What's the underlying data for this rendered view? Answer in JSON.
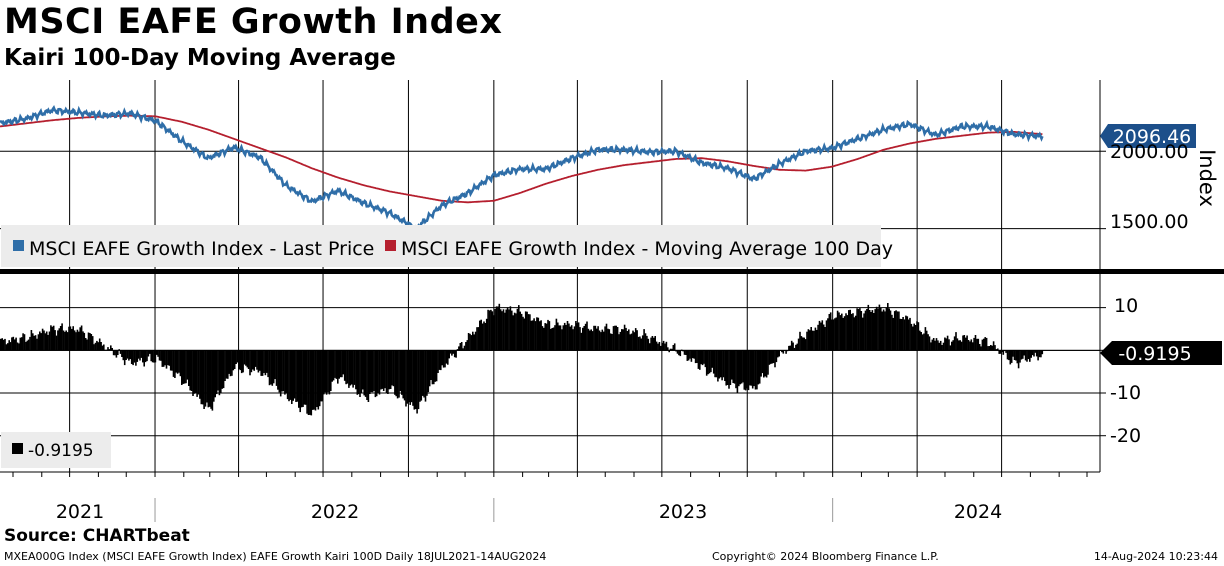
{
  "header": {
    "title": "MSCI EAFE Growth Index",
    "subtitle": "Kairi 100-Day Moving Average"
  },
  "footer": {
    "source": "Source: CHARTbeat",
    "ticker_info": "MXEA000G Index (MSCI EAFE Growth Index) EAFE Growth Kairi 100D  Daily 18JUL2021-14AUG2024",
    "copyright": "Copyright© 2024 Bloomberg Finance L.P.",
    "timestamp": "14-Aug-2024 10:23:44"
  },
  "colors": {
    "price": "#2f6ea8",
    "ma": "#b51f2e",
    "kairi": "#000000",
    "price_tag": "#1c4f8a"
  },
  "chart_data": [
    {
      "type": "line",
      "name": "price-panel",
      "ylabel": "Index",
      "ylim": [
        1220,
        2460
      ],
      "yticks": [
        1500,
        2000
      ],
      "ytick_labels": [
        "1500.00",
        "2000.00"
      ],
      "x": [
        "2021-07-18",
        "2021-08-15",
        "2021-09-12",
        "2021-10-10",
        "2021-11-07",
        "2021-12-05",
        "2022-01-02",
        "2022-01-30",
        "2022-02-27",
        "2022-03-27",
        "2022-04-24",
        "2022-05-22",
        "2022-06-19",
        "2022-07-17",
        "2022-08-14",
        "2022-09-11",
        "2022-10-09",
        "2022-11-06",
        "2022-12-04",
        "2023-01-01",
        "2023-01-29",
        "2023-02-26",
        "2023-03-26",
        "2023-04-23",
        "2023-05-21",
        "2023-06-18",
        "2023-07-16",
        "2023-08-13",
        "2023-09-10",
        "2023-10-08",
        "2023-11-05",
        "2023-12-03",
        "2023-12-31",
        "2024-01-28",
        "2024-02-25",
        "2024-03-24",
        "2024-04-21",
        "2024-05-19",
        "2024-06-16",
        "2024-07-14",
        "2024-08-14"
      ],
      "series": [
        {
          "name": "MSCI EAFE Growth Index - Last Price",
          "values": [
            2180,
            2210,
            2265,
            2250,
            2230,
            2245,
            2195,
            2065,
            1955,
            2025,
            1960,
            1780,
            1675,
            1745,
            1665,
            1600,
            1500,
            1650,
            1730,
            1845,
            1885,
            1885,
            1955,
            2010,
            2010,
            1995,
            2000,
            1925,
            1890,
            1820,
            1920,
            2000,
            2020,
            2080,
            2140,
            2175,
            2105,
            2160,
            2160,
            2110,
            2096.46
          ]
        },
        {
          "name": "MSCI EAFE Growth Index - Moving Average 100 Day",
          "values": [
            2160,
            2180,
            2200,
            2215,
            2225,
            2230,
            2225,
            2190,
            2140,
            2080,
            2020,
            1960,
            1890,
            1830,
            1780,
            1740,
            1710,
            1680,
            1670,
            1680,
            1730,
            1790,
            1840,
            1880,
            1910,
            1930,
            1950,
            1955,
            1935,
            1905,
            1880,
            1875,
            1900,
            1950,
            2010,
            2050,
            2080,
            2100,
            2120,
            2125,
            2110
          ]
        }
      ],
      "last_value_label": "2096.46",
      "legend": "bottom-left"
    },
    {
      "type": "bar",
      "name": "kairi-panel",
      "ylim": [
        -28.5,
        16
      ],
      "yticks": [
        10,
        0,
        -10,
        -20
      ],
      "ytick_labels": [
        "10",
        "",
        "-10",
        "-20"
      ],
      "x": [
        "2021-07-18",
        "2021-08-15",
        "2021-09-12",
        "2021-10-10",
        "2021-11-07",
        "2021-12-05",
        "2022-01-02",
        "2022-01-30",
        "2022-02-27",
        "2022-03-27",
        "2022-04-24",
        "2022-05-22",
        "2022-06-19",
        "2022-07-17",
        "2022-08-14",
        "2022-09-11",
        "2022-10-09",
        "2022-11-06",
        "2022-12-04",
        "2023-01-01",
        "2023-01-29",
        "2023-02-26",
        "2023-03-26",
        "2023-04-23",
        "2023-05-21",
        "2023-06-18",
        "2023-07-16",
        "2023-08-13",
        "2023-09-10",
        "2023-10-08",
        "2023-11-05",
        "2023-12-03",
        "2023-12-31",
        "2024-01-28",
        "2024-02-25",
        "2024-03-24",
        "2024-04-21",
        "2024-05-19",
        "2024-06-16",
        "2024-07-14",
        "2024-08-14"
      ],
      "series": [
        {
          "name": "Kairi 100-Day",
          "values": [
            2,
            3,
            5,
            5,
            1,
            -3,
            -2,
            -7,
            -14,
            -4,
            -5,
            -11,
            -15,
            -6,
            -11,
            -9,
            -14,
            -4,
            3,
            10,
            9,
            6,
            6,
            5,
            5,
            3,
            0,
            -4,
            -8,
            -9,
            -1,
            4,
            8,
            9,
            10,
            7,
            2,
            3,
            2,
            -3,
            -0.9195
          ]
        }
      ],
      "last_value_label": "-0.9195",
      "legend_label": "-0.9195"
    }
  ],
  "x_axis": {
    "year_labels": [
      "2021",
      "2022",
      "2023",
      "2024"
    ]
  }
}
